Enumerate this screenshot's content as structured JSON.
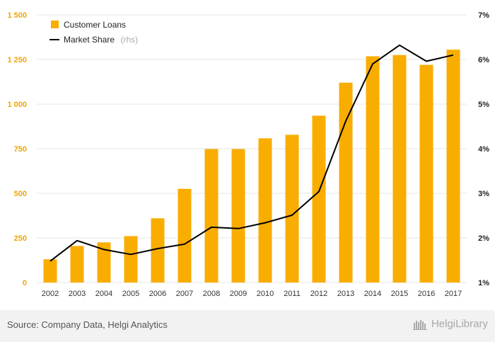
{
  "chart_data": {
    "type": "bar-line",
    "categories": [
      "2002",
      "2003",
      "2004",
      "2005",
      "2006",
      "2007",
      "2008",
      "2009",
      "2010",
      "2011",
      "2012",
      "2013",
      "2014",
      "2015",
      "2016",
      "2017"
    ],
    "series": [
      {
        "name": "Customer Loans",
        "type": "bar",
        "axis": "left",
        "color": "#f9ad00",
        "values": [
          130,
          205,
          225,
          260,
          360,
          525,
          748,
          748,
          808,
          828,
          935,
          1120,
          1268,
          1275,
          1220,
          1305
        ]
      },
      {
        "name": "Market Share",
        "name_suffix": "(rhs)",
        "type": "line",
        "axis": "right",
        "color": "#000000",
        "values": [
          1.48,
          1.94,
          1.74,
          1.63,
          1.76,
          1.86,
          2.24,
          2.21,
          2.34,
          2.51,
          3.04,
          4.62,
          5.9,
          6.32,
          5.96,
          6.1
        ]
      }
    ],
    "y_left": {
      "min": 0,
      "max": 1500,
      "ticks": [
        0,
        250,
        500,
        750,
        1000,
        1250,
        1500
      ],
      "tick_labels": [
        "0",
        "250",
        "500",
        "750",
        "1 000",
        "1 250",
        "1 500"
      ]
    },
    "y_right": {
      "min": 1,
      "max": 7,
      "ticks": [
        1,
        2,
        3,
        4,
        5,
        6,
        7
      ],
      "tick_labels": [
        "1%",
        "2%",
        "3%",
        "4%",
        "5%",
        "6%",
        "7%"
      ]
    },
    "grid": true,
    "legend_position": "top-left"
  },
  "footer": {
    "source": "Source: Company Data, Helgi Analytics",
    "logo": "HelgiLibrary"
  }
}
